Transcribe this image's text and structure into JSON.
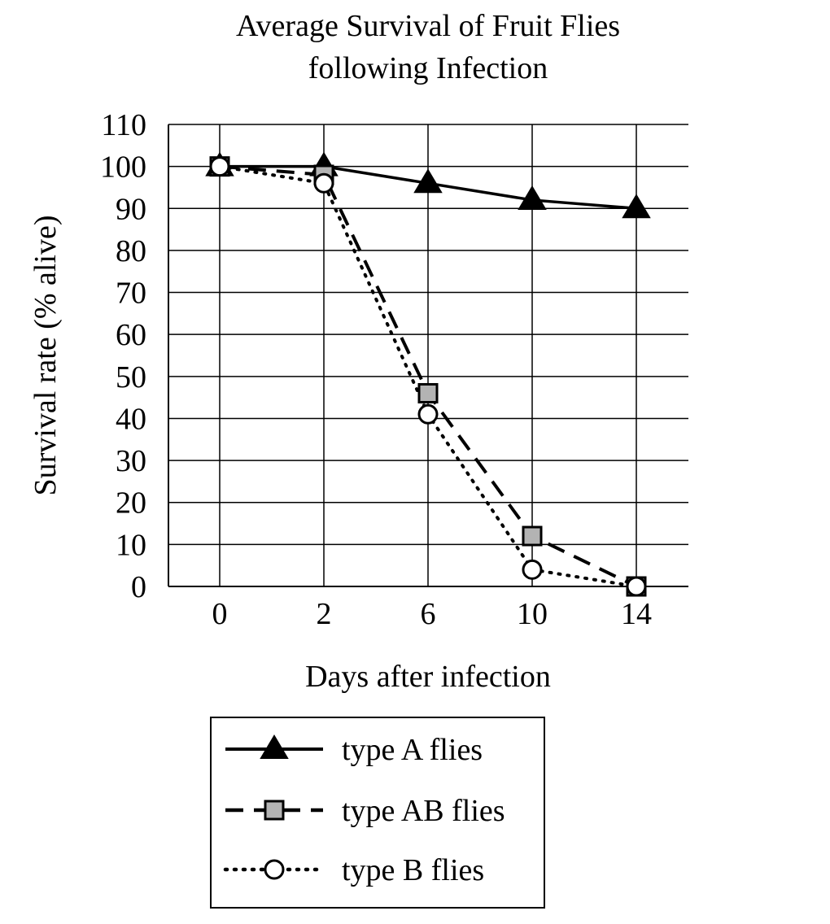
{
  "chart_data": {
    "type": "line",
    "title": [
      "Average Survival of Fruit Flies",
      "following Infection"
    ],
    "xlabel": "Days after infection",
    "ylabel": "Survival rate (% alive)",
    "categories": [
      "0",
      "2",
      "6",
      "10",
      "14"
    ],
    "yticks": [
      "0",
      "10",
      "20",
      "30",
      "40",
      "50",
      "60",
      "70",
      "80",
      "90",
      "100",
      "110"
    ],
    "ylim": [
      0,
      110
    ],
    "grid": true,
    "legend_position": "bottom",
    "series": [
      {
        "name": "type A flies",
        "values": [
          100,
          100,
          96,
          92,
          90
        ],
        "line_style": "solid",
        "marker": "triangle",
        "marker_fill": "#000000"
      },
      {
        "name": "type AB flies",
        "values": [
          100,
          98,
          46,
          12,
          0
        ],
        "line_style": "dashed",
        "marker": "square",
        "marker_fill": "#b3b3b3"
      },
      {
        "name": "type B flies",
        "values": [
          100,
          96,
          41,
          4,
          0
        ],
        "line_style": "dotted",
        "marker": "circle",
        "marker_fill": "#ffffff"
      }
    ]
  }
}
